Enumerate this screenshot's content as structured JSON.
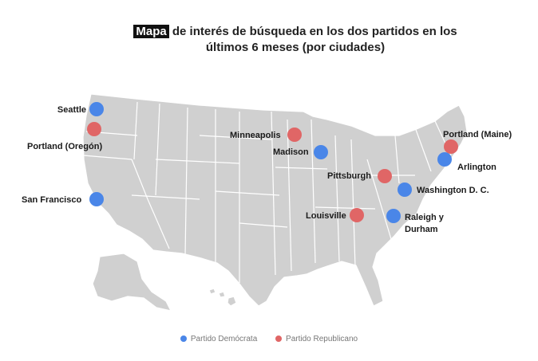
{
  "title": {
    "highlight": "Mapa",
    "line1_rest": " de interés de búsqueda en los dos partidos en los",
    "line2": "últimos 6 meses (por ciudades)"
  },
  "colors": {
    "democrat": "#4a86e8",
    "republican": "#e06666",
    "land": "#d0d0d0",
    "borders": "#ffffff"
  },
  "cities": [
    {
      "name": "Seattle",
      "party": "democrat"
    },
    {
      "name": "Portland (Oregón)",
      "party": "republican"
    },
    {
      "name": "San Francisco",
      "party": "democrat"
    },
    {
      "name": "Minneapolis",
      "party": "republican"
    },
    {
      "name": "Madison",
      "party": "democrat"
    },
    {
      "name": "Portland (Maine)",
      "party": "republican"
    },
    {
      "name": "Arlington",
      "party": "democrat"
    },
    {
      "name": "Pittsburgh",
      "party": "republican"
    },
    {
      "name": "Washington D. C.",
      "party": "democrat"
    },
    {
      "name": "Louisville",
      "party": "republican"
    },
    {
      "name": "Raleigh y",
      "party": "democrat",
      "name_line2": "Durham"
    }
  ],
  "legend": [
    {
      "label": "Partido Demócrata",
      "party": "democrat"
    },
    {
      "label": "Partido Republicano",
      "party": "republican"
    }
  ]
}
